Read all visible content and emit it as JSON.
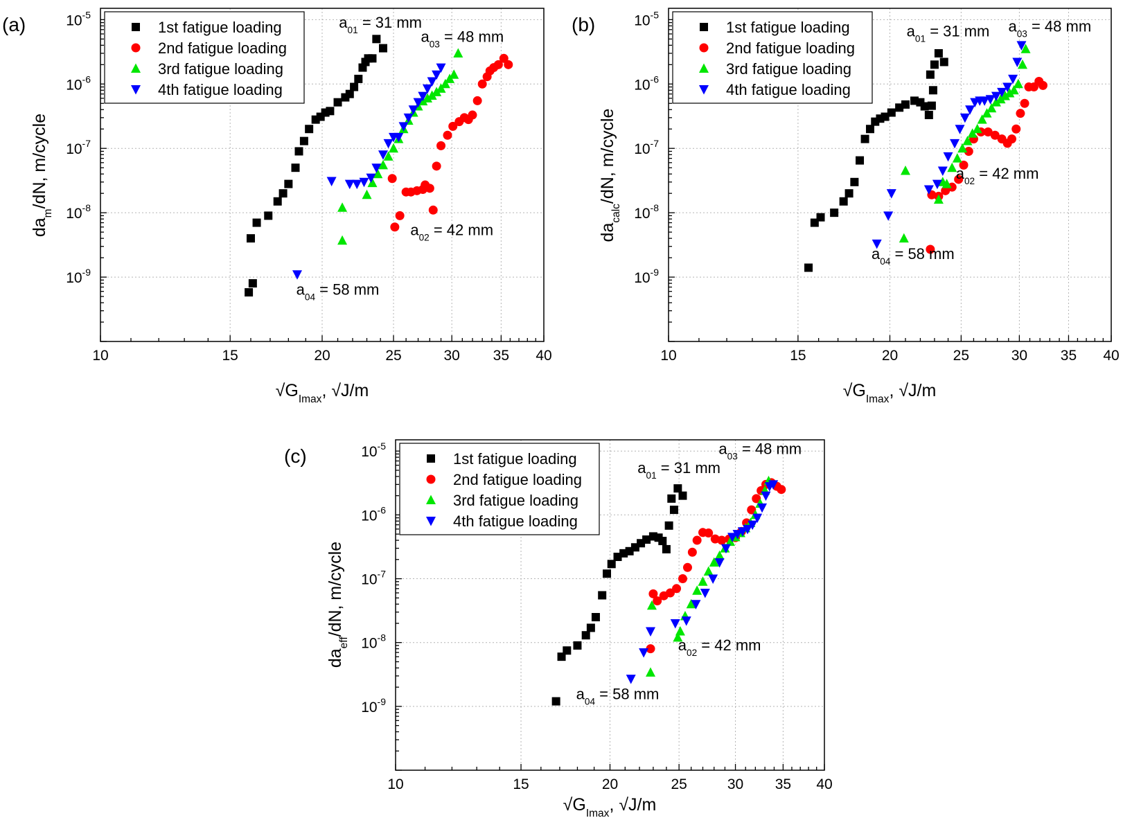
{
  "colors": {
    "s1": "#000000",
    "s2": "#ff0000",
    "s3": "#00e600",
    "s4": "#0000ff",
    "grid": "#b4b4b4"
  },
  "chart_data": [
    {
      "type": "scatter",
      "panel": "(a)",
      "ylabel": {
        "main": "da",
        "sub": "m",
        "rest": "/dN, m/cycle"
      },
      "xlabel": {
        "main": "√G",
        "sub": "Imax",
        "rest": ", √J/m"
      },
      "xscale": "log",
      "yscale": "log",
      "xlim": [
        10,
        40
      ],
      "ylim": [
        1e-10,
        1.5e-05
      ],
      "xticks": [
        10,
        15,
        20,
        25,
        30,
        35,
        40
      ],
      "xtick_labels": [
        "10",
        "15",
        "20",
        "25",
        "30",
        "35",
        "40"
      ],
      "ytick_exponents": [
        "-9",
        "-8",
        "-7",
        "-6",
        "-5"
      ],
      "legend_position": "top-left",
      "series": [
        {
          "name": "1st fatigue loading",
          "marker": "square",
          "x": [
            15.9,
            16.1,
            16.0,
            16.3,
            16.9,
            17.4,
            17.7,
            18.0,
            18.4,
            18.6,
            18.9,
            19.2,
            19.6,
            19.9,
            20.2,
            20.5,
            21.0,
            21.5,
            21.8,
            22.1,
            22.4,
            22.7,
            22.9,
            23.1,
            23.4,
            23.7,
            24.2
          ],
          "y": [
            5.8e-10,
            8e-10,
            4e-09,
            7e-09,
            9e-09,
            1.5e-08,
            2e-08,
            2.8e-08,
            5e-08,
            9e-08,
            1.3e-07,
            2e-07,
            2.8e-07,
            3.1e-07,
            3.6e-07,
            3.8e-07,
            5.2e-07,
            6.2e-07,
            7e-07,
            9e-07,
            1.2e-06,
            1.8e-06,
            2.2e-06,
            2.5e-06,
            2.5e-06,
            5e-06,
            3.6e-06
          ]
        },
        {
          "name": "2nd fatigue loading",
          "marker": "circle",
          "x": [
            24.9,
            25.1,
            25.5,
            26.0,
            26.4,
            26.9,
            27.4,
            27.6,
            28.0,
            28.3,
            28.6,
            29.0,
            29.6,
            30.1,
            30.7,
            31.2,
            31.6,
            32.0,
            32.5,
            33.0,
            33.5,
            33.8,
            34.2,
            34.7,
            35.3,
            35.8
          ],
          "y": [
            3.4e-08,
            6e-09,
            9e-09,
            2.1e-08,
            2.1e-08,
            2.2e-08,
            2.3e-08,
            2.7e-08,
            2.4e-08,
            1.1e-08,
            5.3e-08,
            1.1e-07,
            1.6e-07,
            2.2e-07,
            2.6e-07,
            3e-07,
            2.8e-07,
            3.3e-07,
            5.5e-07,
            1e-06,
            1.3e-06,
            1.6e-06,
            1.8e-06,
            2e-06,
            2.5e-06,
            2e-06
          ]
        },
        {
          "name": "3rd fatigue loading",
          "marker": "triangle-up",
          "x": [
            21.3,
            21.3,
            23.0,
            23.4,
            23.8,
            24.2,
            24.6,
            25.0,
            25.4,
            25.8,
            26.2,
            26.6,
            27.0,
            27.4,
            27.8,
            28.2,
            28.6,
            29.0,
            29.4,
            29.8,
            30.2,
            30.6
          ],
          "y": [
            1.2e-08,
            3.7e-09,
            1.9e-08,
            2.9e-08,
            4e-08,
            5.5e-08,
            7.5e-08,
            1e-07,
            1.4e-07,
            2e-07,
            2.7e-07,
            3.6e-07,
            4.5e-07,
            5.4e-07,
            6e-07,
            6.6e-07,
            7.5e-07,
            8.5e-07,
            1e-06,
            1.2e-06,
            1.4e-06,
            3e-06
          ]
        },
        {
          "name": "4th fatigue loading",
          "marker": "triangle-down",
          "x": [
            18.5,
            20.6,
            21.8,
            22.3,
            22.8,
            23.3,
            23.7,
            24.2,
            24.6,
            25.0,
            25.4,
            25.8,
            26.2,
            26.6,
            27.0,
            27.4,
            27.8,
            28.2,
            28.6,
            29.0
          ],
          "y": [
            1.1e-09,
            3.1e-08,
            2.8e-08,
            2.8e-08,
            3e-08,
            3.5e-08,
            5e-08,
            8e-08,
            1.2e-07,
            1.5e-07,
            1.5e-07,
            2.2e-07,
            3e-07,
            4e-07,
            5.2e-07,
            6.5e-07,
            8.5e-07,
            1.1e-06,
            1.4e-06,
            1.8e-06
          ]
        }
      ],
      "annotations": [
        {
          "main": "a",
          "sub": "01",
          "rest": " = 31 mm",
          "x": 24.0,
          "y": 7.5e-06
        },
        {
          "main": "a",
          "sub": "03",
          "rest": " = 48 mm",
          "x": 31.0,
          "y": 4.5e-06
        },
        {
          "main": "a",
          "sub": "02",
          "rest": " = 42 mm",
          "x": 30.0,
          "y": 4.5e-09
        },
        {
          "main": "a",
          "sub": "04",
          "rest": " = 58 mm",
          "x": 21.0,
          "y": 5.3e-10
        }
      ]
    },
    {
      "type": "scatter",
      "panel": "(b)",
      "ylabel": {
        "main": "da",
        "sub": "calc",
        "rest": "/dN, m/cycle"
      },
      "xlabel": {
        "main": "√G",
        "sub": "Imax",
        "rest": ", √J/m"
      },
      "xscale": "log",
      "yscale": "log",
      "xlim": [
        10,
        40
      ],
      "ylim": [
        1e-10,
        1.5e-05
      ],
      "xticks": [
        10,
        15,
        20,
        25,
        30,
        35,
        40
      ],
      "xtick_labels": [
        "10",
        "15",
        "20",
        "25",
        "30",
        "35",
        "40"
      ],
      "ytick_exponents": [
        "-9",
        "-8",
        "-7",
        "-6",
        "-5"
      ],
      "legend_position": "top-left",
      "series": [
        {
          "name": "1st fatigue loading",
          "marker": "square",
          "x": [
            15.5,
            15.8,
            16.1,
            16.8,
            17.3,
            17.6,
            17.9,
            18.2,
            18.5,
            18.8,
            19.1,
            19.4,
            19.7,
            20.1,
            20.6,
            21.0,
            21.6,
            22.0,
            22.3,
            22.6,
            22.8,
            22.9,
            23.0,
            23.3,
            23.7,
            22.7
          ],
          "y": [
            1.4e-09,
            7e-09,
            8.5e-09,
            1e-08,
            1.5e-08,
            2e-08,
            3e-08,
            6.5e-08,
            1.4e-07,
            2e-07,
            2.6e-07,
            2.9e-07,
            3.1e-07,
            3.6e-07,
            4.3e-07,
            4.8e-07,
            5.5e-07,
            5.2e-07,
            4.5e-07,
            3.3e-07,
            4.6e-07,
            8e-07,
            2e-06,
            3e-06,
            2.2e-06,
            1.4e-06
          ],
          "note": ""
        },
        {
          "name": "2nd fatigue loading",
          "marker": "circle",
          "x": [
            22.7,
            22.8,
            23.3,
            23.8,
            24.3,
            24.8,
            25.2,
            25.6,
            26.0,
            26.6,
            27.2,
            27.8,
            28.4,
            28.9,
            29.3,
            29.7,
            30.1,
            30.5,
            30.9,
            31.4,
            31.9,
            32.3
          ],
          "y": [
            2.7e-09,
            1.9e-08,
            1.8e-08,
            2.2e-08,
            2.5e-08,
            3.3e-08,
            5.5e-08,
            9e-08,
            1.4e-07,
            1.8e-07,
            1.8e-07,
            1.6e-07,
            1.4e-07,
            1.2e-07,
            1.4e-07,
            2e-07,
            3.5e-07,
            5e-07,
            9e-07,
            9e-07,
            1.1e-06,
            9.5e-07
          ]
        },
        {
          "name": "3rd fatigue loading",
          "marker": "triangle-up",
          "x": [
            21.0,
            20.9,
            23.3,
            23.6,
            23.9,
            24.3,
            24.7,
            25.1,
            25.5,
            25.9,
            26.3,
            26.7,
            27.1,
            27.5,
            27.9,
            28.3,
            28.7,
            29.1,
            29.5,
            29.9,
            30.3,
            30.6
          ],
          "y": [
            4.5e-08,
            4e-09,
            1.6e-08,
            3e-08,
            2.8e-08,
            5e-08,
            7e-08,
            1e-07,
            1.3e-07,
            1.7e-07,
            2e-07,
            2.8e-07,
            3.5e-07,
            4.2e-07,
            5.2e-07,
            5.8e-07,
            6.5e-07,
            7.2e-07,
            8e-07,
            1e-06,
            2e-06,
            3.5e-06
          ]
        },
        {
          "name": "4th fatigue loading",
          "marker": "triangle-down",
          "x": [
            19.2,
            19.9,
            20.1,
            22.6,
            23.2,
            23.6,
            24.0,
            24.5,
            24.9,
            25.3,
            25.7,
            26.1,
            26.5,
            26.9,
            27.4,
            27.9,
            28.4,
            28.9,
            29.4,
            29.8,
            30.2
          ],
          "y": [
            3.3e-09,
            9e-09,
            2e-08,
            2.3e-08,
            2.8e-08,
            4.5e-08,
            7.5e-08,
            1.2e-07,
            2e-07,
            3e-07,
            4e-07,
            5.2e-07,
            5.5e-07,
            5.5e-07,
            5.8e-07,
            6.5e-07,
            7.5e-07,
            9e-07,
            1.2e-06,
            2.2e-06,
            4e-06
          ]
        }
      ],
      "annotations": [
        {
          "main": "a",
          "sub": "01",
          "rest": " = 31 mm",
          "x": 24.0,
          "y": 5.5e-06
        },
        {
          "main": "a",
          "sub": "03",
          "rest": " = 48 mm",
          "x": 33.0,
          "y": 6.5e-06
        },
        {
          "main": "a",
          "sub": "02",
          "rest": " = 42 mm",
          "x": 28.0,
          "y": 3.4e-08
        },
        {
          "main": "a",
          "sub": "04",
          "rest": " = 58 mm",
          "x": 21.5,
          "y": 1.9e-09
        }
      ]
    },
    {
      "type": "scatter",
      "panel": "(c)",
      "ylabel": {
        "main": "da",
        "sub": "eff",
        "rest": "/dN, m/cycle"
      },
      "xlabel": {
        "main": "√G",
        "sub": "Imax",
        "rest": ", √J/m"
      },
      "xscale": "log",
      "yscale": "log",
      "xlim": [
        10,
        40
      ],
      "ylim": [
        1e-10,
        1.5e-05
      ],
      "xticks": [
        10,
        15,
        20,
        25,
        30,
        35,
        40
      ],
      "xtick_labels": [
        "10",
        "15",
        "20",
        "25",
        "30",
        "35",
        "40"
      ],
      "ytick_exponents": [
        "-9",
        "-8",
        "-7",
        "-6",
        "-5"
      ],
      "legend_position": "top-left",
      "series": [
        {
          "name": "1st fatigue loading",
          "marker": "square",
          "x": [
            16.8,
            17.1,
            17.4,
            18.0,
            18.5,
            18.8,
            19.1,
            19.5,
            19.8,
            20.1,
            20.5,
            20.9,
            21.3,
            21.7,
            22.1,
            22.5,
            23.0,
            23.4,
            23.7,
            24.0,
            24.2,
            24.4,
            24.6,
            24.9,
            25.3
          ],
          "y": [
            1.2e-09,
            6e-09,
            7.5e-09,
            9e-09,
            1.3e-08,
            1.7e-08,
            2.5e-08,
            5.5e-08,
            1.2e-07,
            1.7e-07,
            2.2e-07,
            2.5e-07,
            2.7e-07,
            3.1e-07,
            3.6e-07,
            4.1e-07,
            4.6e-07,
            4.4e-07,
            3.9e-07,
            2.9e-07,
            6.8e-07,
            1.8e-06,
            1.2e-06,
            2.6e-06,
            2e-06
          ]
        },
        {
          "name": "2nd fatigue loading",
          "marker": "circle",
          "x": [
            22.8,
            23.0,
            23.3,
            23.8,
            24.3,
            24.8,
            25.3,
            25.7,
            26.1,
            26.5,
            27.0,
            27.5,
            28.1,
            28.7,
            29.4,
            30.0,
            30.6,
            31.1,
            31.6,
            32.1,
            32.6,
            33.1,
            33.7,
            34.3,
            34.8
          ],
          "y": [
            8e-09,
            5.8e-08,
            4.5e-08,
            5.4e-08,
            6e-08,
            7e-08,
            1e-07,
            1.5e-07,
            2.6e-07,
            4e-07,
            5.3e-07,
            5.2e-07,
            4.2e-07,
            4e-07,
            4.2e-07,
            4.4e-07,
            5.5e-07,
            7.5e-07,
            1.2e-06,
            1.8e-06,
            2.4e-06,
            3e-06,
            3.2e-06,
            2.8e-06,
            2.5e-06
          ]
        },
        {
          "name": "3rd fatigue loading",
          "marker": "triangle-up",
          "x": [
            22.8,
            22.9,
            24.9,
            25.1,
            25.5,
            26.0,
            26.5,
            27.0,
            27.5,
            28.0,
            28.5,
            29.0,
            29.5,
            30.0,
            30.5,
            31.0,
            31.5,
            32.0,
            32.5,
            33.0,
            33.4
          ],
          "y": [
            3.4e-09,
            3.8e-08,
            1.2e-08,
            1.5e-08,
            2.6e-08,
            4e-08,
            6.5e-08,
            9e-08,
            1.3e-07,
            1.8e-07,
            2.3e-07,
            3e-07,
            3.8e-07,
            4.5e-07,
            5.2e-07,
            6.2e-07,
            7.5e-07,
            1e-06,
            1.5e-06,
            2.4e-06,
            3.4e-06
          ]
        },
        {
          "name": "4th fatigue loading",
          "marker": "triangle-down",
          "x": [
            21.4,
            22.3,
            22.8,
            24.7,
            25.6,
            26.4,
            27.2,
            27.9,
            28.5,
            29.1,
            29.7,
            30.2,
            30.7,
            31.2,
            31.7,
            32.2,
            32.7,
            33.1,
            33.5,
            33.9
          ],
          "y": [
            2.7e-09,
            7e-09,
            1.5e-08,
            2e-08,
            2.2e-08,
            4e-08,
            6e-08,
            1e-07,
            1.8e-07,
            3e-07,
            4.5e-07,
            5e-07,
            5.5e-07,
            6e-07,
            7e-07,
            9e-07,
            1.3e-06,
            2e-06,
            2.8e-06,
            3e-06
          ]
        }
      ],
      "annotations": [
        {
          "main": "a",
          "sub": "01",
          "rest": " = 31 mm",
          "x": 25.0,
          "y": 4.5e-06
        },
        {
          "main": "a",
          "sub": "03",
          "rest": " = 48 mm",
          "x": 32.5,
          "y": 9e-06
        },
        {
          "main": "a",
          "sub": "02",
          "rest": " = 42 mm",
          "x": 28.5,
          "y": 7.5e-09
        },
        {
          "main": "a",
          "sub": "04",
          "rest": " = 58 mm",
          "x": 20.5,
          "y": 1.3e-09
        }
      ]
    }
  ]
}
